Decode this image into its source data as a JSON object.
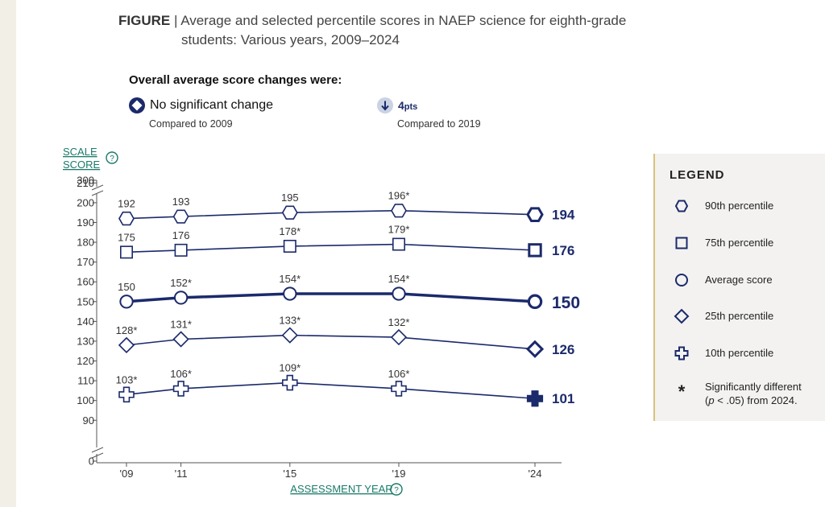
{
  "figure": {
    "label": "FIGURE",
    "separator": "|",
    "title_line1": "Average and selected percentile scores in NAEP science for eighth-grade",
    "title_line2": "students: Various years, 2009–2024"
  },
  "summary": {
    "heading": "Overall average score changes were:",
    "items": [
      {
        "text": "No significant change",
        "sub": "Compared to 2009"
      },
      {
        "value": "4",
        "unit": "pts",
        "sub": "Compared to 2019"
      }
    ]
  },
  "axis": {
    "y_label_line1": "SCALE",
    "y_label_line2": "SCORE",
    "x_label": "ASSESSMENT YEAR",
    "help_glyph": "?"
  },
  "legend": {
    "title": "LEGEND",
    "items": [
      {
        "label": "90th percentile",
        "icon": "hexagon-icon"
      },
      {
        "label": "75th percentile",
        "icon": "square-icon"
      },
      {
        "label": "Average score",
        "icon": "circle-icon"
      },
      {
        "label": "25th percentile",
        "icon": "diamond-icon"
      },
      {
        "label": "10th percentile",
        "icon": "cross-icon"
      }
    ],
    "sig_symbol": "*",
    "sig_line1": "Significantly different",
    "sig_line2_a": "p",
    "sig_line2_b": " < .05) from 2024."
  },
  "chart_data": {
    "type": "line",
    "title": "Average and selected percentile scores in NAEP science for eighth-grade students: Various years, 2009–2024",
    "xlabel": "ASSESSMENT YEAR",
    "ylabel": "SCALE SCORE",
    "categories": [
      "'09",
      "'11",
      "'15",
      "'19",
      "'24"
    ],
    "years": [
      2009,
      2011,
      2015,
      2019,
      2024
    ],
    "y_ticks": [
      0,
      90,
      100,
      110,
      120,
      130,
      140,
      150,
      160,
      170,
      180,
      190,
      200,
      210,
      300
    ],
    "y_axis_break": "between 0 and 90, and between 210 and 300",
    "ylim": [
      90,
      210
    ],
    "series": [
      {
        "name": "90th percentile",
        "marker": "hexagon",
        "values": [
          192,
          193,
          195,
          196,
          194
        ],
        "labels": [
          "192",
          "193",
          "195",
          "196*",
          "194"
        ]
      },
      {
        "name": "75th percentile",
        "marker": "square",
        "values": [
          175,
          176,
          178,
          179,
          176
        ],
        "labels": [
          "175",
          "176",
          "178*",
          "179*",
          "176"
        ]
      },
      {
        "name": "Average score",
        "marker": "circle",
        "values": [
          150,
          152,
          154,
          154,
          150
        ],
        "labels": [
          "150",
          "152*",
          "154*",
          "154*",
          "150"
        ]
      },
      {
        "name": "25th percentile",
        "marker": "diamond",
        "values": [
          128,
          131,
          133,
          132,
          126
        ],
        "labels": [
          "128*",
          "131*",
          "133*",
          "132*",
          "126"
        ]
      },
      {
        "name": "10th percentile",
        "marker": "cross",
        "values": [
          103,
          106,
          109,
          106,
          101
        ],
        "labels": [
          "103*",
          "106*",
          "109*",
          "106*",
          "101"
        ]
      }
    ]
  },
  "colors": {
    "series": "#1b2a6b",
    "axis": "#555555",
    "link": "#1a7a6a",
    "legend_bg": "#f3f2f0",
    "legend_accent": "#d9c27a"
  }
}
